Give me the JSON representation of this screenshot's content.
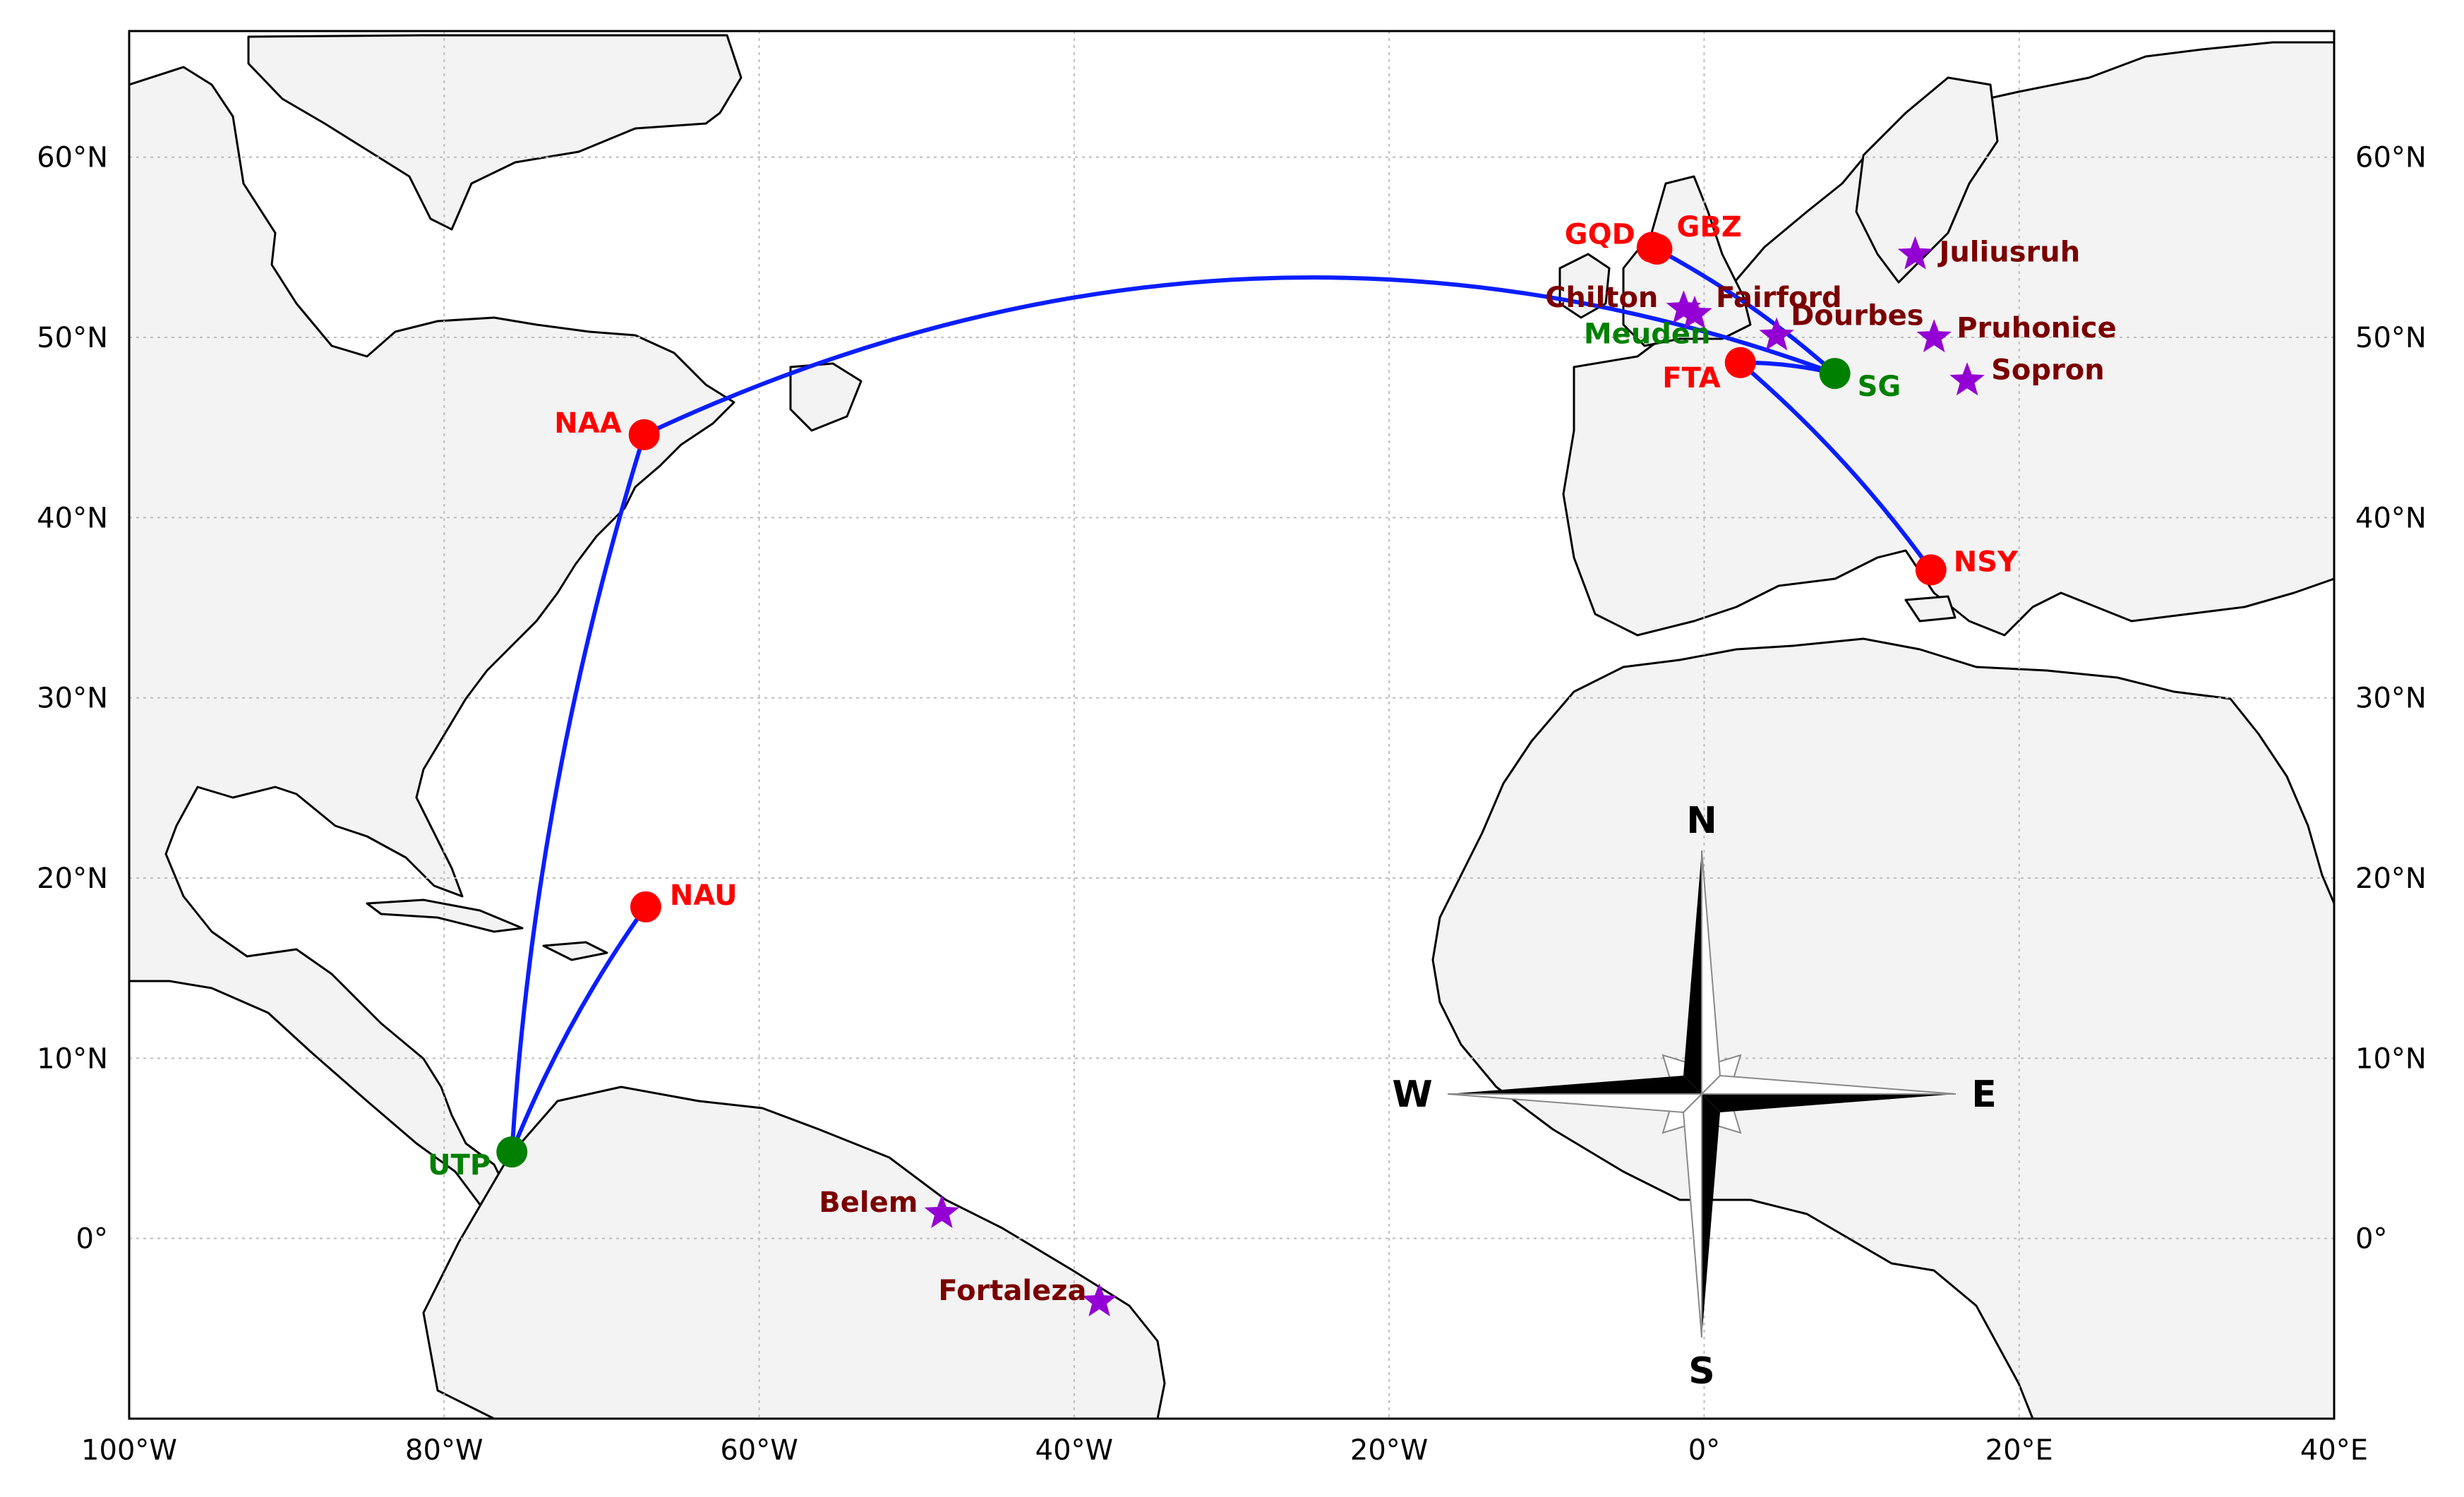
{
  "map": {
    "projection": "equirectangular",
    "lon_range": [
      -100,
      40
    ],
    "lat_range": [
      -10,
      67
    ],
    "grid": true,
    "colors": {
      "land": "#f3f3f3",
      "ocean": "#ffffff",
      "coastline": "#000000",
      "gridline": "#bdbdbd",
      "link": "#0a1eff",
      "red_site": "#ff0000",
      "red_label": "#ff0000",
      "green_site": "#008000",
      "green_label": "#008000",
      "star": "#9400d3",
      "star_label": "#7b0000"
    },
    "x_ticks": [
      {
        "value": -100,
        "label": "100°W"
      },
      {
        "value": -80,
        "label": "80°W"
      },
      {
        "value": -60,
        "label": "60°W"
      },
      {
        "value": -40,
        "label": "40°W"
      },
      {
        "value": -20,
        "label": "20°W"
      },
      {
        "value": 0,
        "label": "0°"
      },
      {
        "value": 20,
        "label": "20°E"
      },
      {
        "value": 40,
        "label": "40°E"
      }
    ],
    "y_ticks": [
      {
        "value": 0,
        "label": "0°"
      },
      {
        "value": 10,
        "label": "10°N"
      },
      {
        "value": 20,
        "label": "20°N"
      },
      {
        "value": 30,
        "label": "30°N"
      },
      {
        "value": 40,
        "label": "40°N"
      },
      {
        "value": 50,
        "label": "50°N"
      },
      {
        "value": 60,
        "label": "60°N"
      }
    ],
    "red_sites": [
      {
        "id": "NAA",
        "label": "NAA",
        "lon": -67.3,
        "lat": 44.6
      },
      {
        "id": "NAU",
        "label": "NAU",
        "lon": -67.2,
        "lat": 18.4
      },
      {
        "id": "GQD",
        "label": "GQD",
        "lon": -3.3,
        "lat": 55.0
      },
      {
        "id": "GBZ",
        "label": "GBZ",
        "lon": -3.0,
        "lat": 54.9
      },
      {
        "id": "FTA",
        "label": "FTA",
        "lon": 2.3,
        "lat": 48.6
      },
      {
        "id": "NSY",
        "label": "NSY",
        "lon": 14.4,
        "lat": 37.1
      }
    ],
    "green_sites": [
      {
        "id": "UTP",
        "label": "UTP",
        "lon": -75.7,
        "lat": 4.8
      },
      {
        "id": "SG",
        "label": "SG",
        "lon": 8.3,
        "lat": 48.0
      },
      {
        "id": "Meuden",
        "label": "Meuden",
        "lon": 2.2,
        "lat": 48.8
      }
    ],
    "stars": [
      {
        "label": "Juliusruh",
        "lon": 13.4,
        "lat": 54.6
      },
      {
        "label": "Chilton",
        "lon": -1.3,
        "lat": 51.6
      },
      {
        "label": "Fairford",
        "lon": -0.6,
        "lat": 51.3
      },
      {
        "label": "Dourbes",
        "lon": 4.6,
        "lat": 50.1
      },
      {
        "label": "Pruhonice",
        "lon": 14.6,
        "lat": 50.0
      },
      {
        "label": "Sopron",
        "lon": 16.7,
        "lat": 47.6
      },
      {
        "label": "Belem",
        "lon": -48.4,
        "lat": 1.4
      },
      {
        "label": "Fortaleza",
        "lon": -38.4,
        "lat": -3.5
      }
    ],
    "links": [
      {
        "from": "UTP",
        "to": "NAU"
      },
      {
        "from": "UTP",
        "to": "NAA"
      },
      {
        "from": "NAA",
        "to": "SG"
      },
      {
        "from": "GBZ",
        "to": "SG"
      },
      {
        "from": "FTA",
        "to": "SG"
      },
      {
        "from": "FTA",
        "to": "NSY"
      }
    ],
    "compass": {
      "north": "N",
      "south": "S",
      "east": "E",
      "west": "W",
      "icon": "compass-rose-icon"
    }
  }
}
